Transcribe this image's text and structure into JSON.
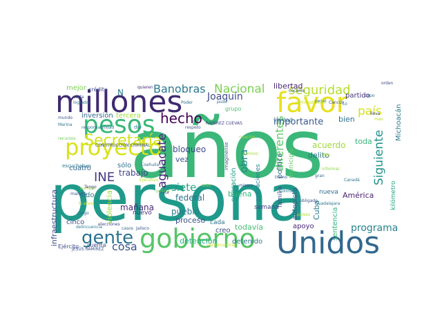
{
  "cloud": {
    "words": [
      {
        "text": "años",
        "color": "#3bb77a"
      },
      {
        "text": "persona",
        "color": "#1f9a8a"
      },
      {
        "text": "millones",
        "color": "#3f2a70"
      },
      {
        "text": "favor",
        "color": "#e6e020"
      },
      {
        "text": "gobierno",
        "color": "#56c567"
      },
      {
        "text": "Unidos",
        "color": "#31688e"
      },
      {
        "text": "proyecto",
        "color": "#d8e219"
      },
      {
        "text": "pesos",
        "color": "#37b878"
      },
      {
        "text": "gente",
        "color": "#2c728e"
      },
      {
        "text": "Secretaría",
        "color": "#d0e11c"
      },
      {
        "text": "hecho",
        "color": "#440154"
      },
      {
        "text": "Banobras",
        "color": "#2a788e"
      },
      {
        "text": "Nacional",
        "color": "#7ad151"
      },
      {
        "text": "seguridad",
        "color": "#b5de2b"
      },
      {
        "text": "país",
        "color": "#d2e21b"
      },
      {
        "text": "Joaquín",
        "color": "#3e4a89"
      },
      {
        "text": "Siguiente",
        "color": "#21918c"
      },
      {
        "text": "INE",
        "color": "#443a83"
      },
      {
        "text": "aguacate",
        "color": "#482878"
      },
      {
        "text": "obra",
        "color": "#228b8d"
      },
      {
        "text": "diferentes",
        "color": "#5ec962"
      },
      {
        "text": "importante",
        "color": "#38598c"
      },
      {
        "text": "cosa",
        "color": "#3b528b"
      },
      {
        "text": "siete",
        "color": "#22a884"
      },
      {
        "text": "programa",
        "color": "#26828e"
      },
      {
        "text": "libertad",
        "color": "#482475"
      },
      {
        "text": "inversión",
        "color": "#31688e"
      },
      {
        "text": "tercera",
        "color": "#a0da39"
      },
      {
        "text": "bloqueo",
        "color": "#3e4989"
      },
      {
        "text": "bien",
        "color": "#2d708e"
      },
      {
        "text": "partido",
        "color": "#472f7d"
      },
      {
        "text": "acuerdo",
        "color": "#9fda3a"
      },
      {
        "text": "buena",
        "color": "#2fb47c"
      },
      {
        "text": "federal",
        "color": "#2c728e"
      },
      {
        "text": "pueblo",
        "color": "#2a788e"
      },
      {
        "text": "proceso",
        "color": "#3b528b"
      },
      {
        "text": "infraestructura",
        "color": "#3e4c8a"
      },
      {
        "text": "violencia",
        "color": "#9dd93b"
      },
      {
        "text": "mañana",
        "color": "#482475"
      },
      {
        "text": "trabajo",
        "color": "#414487"
      },
      {
        "text": "sólo",
        "color": "#2d708e"
      },
      {
        "text": "vez",
        "color": "#3b528b"
      },
      {
        "text": "operación",
        "color": "#1f9e89"
      },
      {
        "text": "política",
        "color": "#2e6d8e"
      },
      {
        "text": "delito",
        "color": "#2c728e"
      },
      {
        "text": "toda",
        "color": "#35b779"
      },
      {
        "text": "Cuba",
        "color": "#287c8e"
      },
      {
        "text": "América",
        "color": "#481f70"
      },
      {
        "text": "apoyo",
        "color": "#482374"
      },
      {
        "text": "creo",
        "color": "#3e4989"
      },
      {
        "text": "todavía",
        "color": "#44bf70"
      },
      {
        "text": "detención",
        "color": "#25ab82"
      },
      {
        "text": "detenido",
        "color": "#2a788e"
      },
      {
        "text": "cinco",
        "color": "#3b528b"
      },
      {
        "text": "cuatro",
        "color": "#31688e"
      },
      {
        "text": "sido",
        "color": "#2a788e"
      },
      {
        "text": "nuevo",
        "color": "#46327e"
      },
      {
        "text": "cada",
        "color": "#2c728e"
      },
      {
        "text": "semana",
        "color": "#414487"
      },
      {
        "text": "familia",
        "color": "#3b528b"
      },
      {
        "text": "sentencia",
        "color": "#2fb47c"
      },
      {
        "text": "autopista",
        "color": "#39568c"
      },
      {
        "text": "nueva",
        "color": "#31688e"
      },
      {
        "text": "municipio",
        "color": "#5ec962"
      },
      {
        "text": "Michoacán",
        "color": "#2a788e"
      },
      {
        "text": "kilómetro",
        "color": "#22a884"
      },
      {
        "text": "grupo",
        "color": "#4ac16d"
      },
      {
        "text": "verdad",
        "color": "#2d708e"
      },
      {
        "text": "imagínense",
        "color": "#3b528b"
      },
      {
        "text": "operaciones",
        "color": "#26828e"
      },
      {
        "text": "escuchaban",
        "color": "#2c728e"
      },
      {
        "text": "mejor",
        "color": "#7ad151"
      },
      {
        "text": "crédito",
        "color": "#3e4a89"
      },
      {
        "text": "quieren",
        "color": "#482878"
      },
      {
        "text": "cocaína",
        "color": "#3b528b"
      },
      {
        "text": "orden",
        "color": "#3e4989"
      },
      {
        "text": "N",
        "color": "#2a788e"
      },
      {
        "text": "Ejército",
        "color": "#3e4989"
      },
      {
        "text": "JESÚS RAMÍREZ",
        "color": "#3b528b"
      },
      {
        "text": "cuenta",
        "color": "#3e4a89"
      },
      {
        "text": "Canadá",
        "color": "#2c728e"
      },
      {
        "text": "casos",
        "color": "#31688e"
      },
      {
        "text": "Jalisco",
        "color": "#3b528b"
      },
      {
        "text": "delincuencia",
        "color": "#2a788e"
      },
      {
        "text": "elecciones",
        "color": "#414487"
      },
      {
        "text": "Coahuila",
        "color": "#31688e"
      },
      {
        "text": "Poder",
        "color": "#2c728e"
      },
      {
        "text": "CONSTRUCCIÓN CRIMINAL",
        "color": "#3b528b"
      },
      {
        "text": "responsabilidad",
        "color": "#2c728e"
      },
      {
        "text": "dio",
        "color": "#2a788e"
      },
      {
        "text": "RAMÍREZ CUEVAS",
        "color": "#414487"
      },
      {
        "text": "respeto",
        "color": "#3b528b"
      },
      {
        "text": "recursos",
        "color": "#6ece58"
      },
      {
        "text": "Marina",
        "color": "#2c728e"
      },
      {
        "text": "mundo",
        "color": "#3b528b"
      },
      {
        "text": "cargo",
        "color": "#31688e"
      },
      {
        "text": "manera",
        "color": "#3b528b"
      },
      {
        "text": "cumple",
        "color": "#a0da39"
      },
      {
        "text": "N años",
        "color": "#c8e020"
      },
      {
        "text": "tramo",
        "color": "#3b528b"
      },
      {
        "text": "gran",
        "color": "#31688e"
      },
      {
        "text": "Colima",
        "color": "#2a788e"
      },
      {
        "text": "informar",
        "color": "#8fd744"
      },
      {
        "text": "trata",
        "color": "#3e4989"
      },
      {
        "text": "Ejecutivo",
        "color": "#b5de2b"
      },
      {
        "text": "lleva",
        "color": "#3e4989"
      },
      {
        "text": "penal",
        "color": "#2c728e"
      },
      {
        "text": "Cancún",
        "color": "#3b528b"
      },
      {
        "text": "logrado",
        "color": "#2a788e"
      },
      {
        "text": "carta",
        "color": "#3b528b"
      },
      {
        "text": "pudo",
        "color": "#31688e"
      },
      {
        "text": "capo",
        "color": "#2c728e"
      },
      {
        "text": "mas",
        "color": "#b5de2b"
      },
      {
        "text": "policía",
        "color": "#7ad151"
      },
      {
        "text": "camino",
        "color": "#a0da39"
      },
      {
        "text": "relación",
        "color": "#a0da39"
      },
      {
        "text": "tuvo",
        "color": "#8fd744"
      },
      {
        "text": "países",
        "color": "#b5de2b"
      },
      {
        "text": "consecuencia",
        "color": "#c8e020"
      },
      {
        "text": "mismo",
        "color": "#3e4989"
      },
      {
        "text": "Guadalajara",
        "color": "#2c728e"
      },
      {
        "text": "obligado",
        "color": "#3b528b"
      },
      {
        "text": "administración",
        "color": "#c8e020"
      },
      {
        "text": "Lo",
        "color": "#2a788e"
      },
      {
        "text": "hizo",
        "color": "#b5de2b"
      },
      {
        "text": "Tengo",
        "color": "#414487"
      }
    ]
  }
}
